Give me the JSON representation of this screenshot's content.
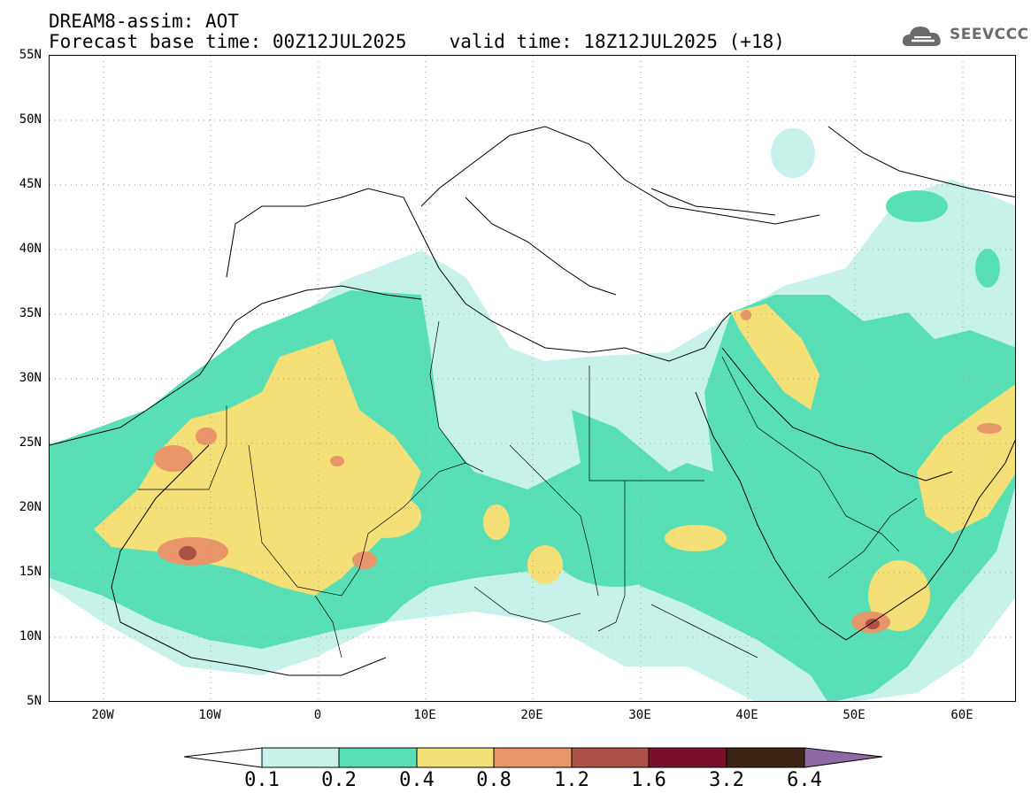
{
  "header": {
    "line1": "DREAM8-assim: AOT",
    "base_time": "Forecast base time: 00Z12JUL2025",
    "valid_time": "valid time: 18Z12JUL2025 (+18)"
  },
  "logo": {
    "text": "SEEVCCC",
    "icon": "cloud-logo-icon",
    "color": "#6b6b6b"
  },
  "map": {
    "lat_labels": [
      "55N",
      "50N",
      "45N",
      "40N",
      "35N",
      "30N",
      "25N",
      "20N",
      "15N",
      "10N",
      "5N"
    ],
    "lon_labels": [
      "20W",
      "10W",
      "0",
      "10E",
      "20E",
      "30E",
      "40E",
      "50E",
      "60E"
    ],
    "field": "Aerosol optical thickness"
  },
  "colorbar": {
    "labels": [
      "0.1",
      "0.2",
      "0.4",
      "0.8",
      "1.2",
      "1.6",
      "3.2",
      "6.4"
    ],
    "colors": [
      "#c6f2ea",
      "#59dfb6",
      "#f4e076",
      "#e79569",
      "#ab5145",
      "#7a0f2b",
      "#3b2414",
      "#8d69a6"
    ]
  }
}
